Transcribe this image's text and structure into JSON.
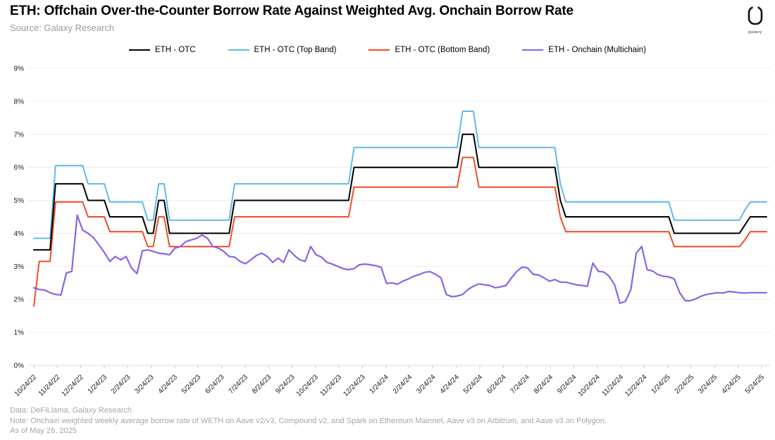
{
  "header": {
    "title": "ETH: Offchain Over-the-Counter Borrow Rate Against Weighted Avg. Onchain Borrow Rate",
    "source": "Source: Galaxy Research",
    "logo_text": "galaxy"
  },
  "legend": [
    {
      "label": "ETH - OTC",
      "color": "#000000"
    },
    {
      "label": "ETH - OTC (Top Band)",
      "color": "#62B9E8"
    },
    {
      "label": "ETH - OTC (Bottom Band)",
      "color": "#F04E23"
    },
    {
      "label": "ETH - Onchain (Multichain)",
      "color": "#8A63E6"
    }
  ],
  "footer": {
    "data": "Data: DeFiLlama, Galaxy Research",
    "note": "Note: Onchain weighted weekly average borrow rate of WETH on Aave v2/v3, Compound v2, and Spark on Ethereum Mainnet, Aave v3 on Arbitrum, and Aave v3 on Polygon.",
    "as_of": "As of May 26, 2025"
  },
  "chart_data": {
    "type": "line",
    "title": "ETH: Offchain Over-the-Counter Borrow Rate Against Weighted Avg. Onchain Borrow Rate",
    "x_unit": "weekly observations, 10/24/22 through 5/26/25",
    "x_tick_labels": [
      "10/24/22",
      "11/24/22",
      "12/24/22",
      "1/24/23",
      "2/24/23",
      "3/24/23",
      "4/24/23",
      "5/24/23",
      "6/24/23",
      "7/24/23",
      "8/24/23",
      "9/24/23",
      "10/24/23",
      "11/24/23",
      "12/24/23",
      "1/24/24",
      "2/24/24",
      "3/24/24",
      "4/24/24",
      "5/24/24",
      "6/24/24",
      "7/24/24",
      "8/24/24",
      "9/24/24",
      "10/24/24",
      "11/24/24",
      "12/24/24",
      "1/24/25",
      "2/24/25",
      "3/24/25",
      "4/24/25",
      "5/24/25"
    ],
    "y_tick_labels": [
      "0%",
      "1%",
      "2%",
      "3%",
      "4%",
      "5%",
      "6%",
      "7%",
      "8%",
      "9%"
    ],
    "ylim": [
      0,
      9
    ],
    "grid": true,
    "legend_position": "top",
    "series": [
      {
        "name": "ETH - OTC",
        "color": "#000000",
        "values": [
          3.5,
          3.5,
          3.5,
          3.5,
          5.5,
          5.5,
          5.5,
          5.5,
          5.5,
          5.5,
          5.0,
          5.0,
          5.0,
          5.0,
          4.5,
          4.5,
          4.5,
          4.5,
          4.5,
          4.5,
          4.5,
          4.0,
          4.0,
          5.0,
          5.0,
          4.0,
          4.0,
          4.0,
          4.0,
          4.0,
          4.0,
          4.0,
          4.0,
          4.0,
          4.0,
          4.0,
          4.0,
          5.0,
          5.0,
          5.0,
          5.0,
          5.0,
          5.0,
          5.0,
          5.0,
          5.0,
          5.0,
          5.0,
          5.0,
          5.0,
          5.0,
          5.0,
          5.0,
          5.0,
          5.0,
          5.0,
          5.0,
          5.0,
          5.0,
          6.0,
          6.0,
          6.0,
          6.0,
          6.0,
          6.0,
          6.0,
          6.0,
          6.0,
          6.0,
          6.0,
          6.0,
          6.0,
          6.0,
          6.0,
          6.0,
          6.0,
          6.0,
          6.0,
          6.0,
          7.0,
          7.0,
          7.0,
          6.0,
          6.0,
          6.0,
          6.0,
          6.0,
          6.0,
          6.0,
          6.0,
          6.0,
          6.0,
          6.0,
          6.0,
          6.0,
          6.0,
          6.0,
          5.0,
          4.5,
          4.5,
          4.5,
          4.5,
          4.5,
          4.5,
          4.5,
          4.5,
          4.5,
          4.5,
          4.5,
          4.5,
          4.5,
          4.5,
          4.5,
          4.5,
          4.5,
          4.5,
          4.5,
          4.5,
          4.0,
          4.0,
          4.0,
          4.0,
          4.0,
          4.0,
          4.0,
          4.0,
          4.0,
          4.0,
          4.0,
          4.0,
          4.0,
          4.25,
          4.5,
          4.5,
          4.5,
          4.5
        ]
      },
      {
        "name": "ETH - OTC (Top Band)",
        "color": "#62B9E8",
        "values": [
          3.85,
          3.85,
          3.85,
          3.85,
          6.05,
          6.05,
          6.05,
          6.05,
          6.05,
          6.05,
          5.5,
          5.5,
          5.5,
          5.5,
          4.95,
          4.95,
          4.95,
          4.95,
          4.95,
          4.95,
          4.95,
          4.4,
          4.4,
          5.5,
          5.5,
          4.4,
          4.4,
          4.4,
          4.4,
          4.4,
          4.4,
          4.4,
          4.4,
          4.4,
          4.4,
          4.4,
          4.4,
          5.5,
          5.5,
          5.5,
          5.5,
          5.5,
          5.5,
          5.5,
          5.5,
          5.5,
          5.5,
          5.5,
          5.5,
          5.5,
          5.5,
          5.5,
          5.5,
          5.5,
          5.5,
          5.5,
          5.5,
          5.5,
          5.5,
          6.6,
          6.6,
          6.6,
          6.6,
          6.6,
          6.6,
          6.6,
          6.6,
          6.6,
          6.6,
          6.6,
          6.6,
          6.6,
          6.6,
          6.6,
          6.6,
          6.6,
          6.6,
          6.6,
          6.6,
          7.7,
          7.7,
          7.7,
          6.6,
          6.6,
          6.6,
          6.6,
          6.6,
          6.6,
          6.6,
          6.6,
          6.6,
          6.6,
          6.6,
          6.6,
          6.6,
          6.6,
          6.6,
          5.5,
          4.95,
          4.95,
          4.95,
          4.95,
          4.95,
          4.95,
          4.95,
          4.95,
          4.95,
          4.95,
          4.95,
          4.95,
          4.95,
          4.95,
          4.95,
          4.95,
          4.95,
          4.95,
          4.95,
          4.95,
          4.4,
          4.4,
          4.4,
          4.4,
          4.4,
          4.4,
          4.4,
          4.4,
          4.4,
          4.4,
          4.4,
          4.4,
          4.4,
          4.7,
          4.95,
          4.95,
          4.95,
          4.95
        ]
      },
      {
        "name": "ETH - OTC (Bottom Band)",
        "color": "#F04E23",
        "values": [
          1.8,
          3.15,
          3.15,
          3.15,
          4.95,
          4.95,
          4.95,
          4.95,
          4.95,
          4.95,
          4.5,
          4.5,
          4.5,
          4.5,
          4.05,
          4.05,
          4.05,
          4.05,
          4.05,
          4.05,
          4.05,
          3.6,
          3.6,
          4.5,
          4.5,
          3.6,
          3.6,
          3.6,
          3.6,
          3.6,
          3.6,
          3.6,
          3.6,
          3.6,
          3.6,
          3.6,
          3.6,
          4.5,
          4.5,
          4.5,
          4.5,
          4.5,
          4.5,
          4.5,
          4.5,
          4.5,
          4.5,
          4.5,
          4.5,
          4.5,
          4.5,
          4.5,
          4.5,
          4.5,
          4.5,
          4.5,
          4.5,
          4.5,
          4.5,
          5.4,
          5.4,
          5.4,
          5.4,
          5.4,
          5.4,
          5.4,
          5.4,
          5.4,
          5.4,
          5.4,
          5.4,
          5.4,
          5.4,
          5.4,
          5.4,
          5.4,
          5.4,
          5.4,
          5.4,
          6.3,
          6.3,
          6.3,
          5.4,
          5.4,
          5.4,
          5.4,
          5.4,
          5.4,
          5.4,
          5.4,
          5.4,
          5.4,
          5.4,
          5.4,
          5.4,
          5.4,
          5.4,
          4.5,
          4.05,
          4.05,
          4.05,
          4.05,
          4.05,
          4.05,
          4.05,
          4.05,
          4.05,
          4.05,
          4.05,
          4.05,
          4.05,
          4.05,
          4.05,
          4.05,
          4.05,
          4.05,
          4.05,
          4.05,
          3.6,
          3.6,
          3.6,
          3.6,
          3.6,
          3.6,
          3.6,
          3.6,
          3.6,
          3.6,
          3.6,
          3.6,
          3.6,
          3.8,
          4.05,
          4.05,
          4.05,
          4.05
        ]
      },
      {
        "name": "ETH - Onchain (Multichain)",
        "color": "#8A63E6",
        "values": [
          2.35,
          2.3,
          2.28,
          2.2,
          2.15,
          2.13,
          2.8,
          2.85,
          4.55,
          4.1,
          4.0,
          3.87,
          3.65,
          3.42,
          3.15,
          3.3,
          3.2,
          3.3,
          2.95,
          2.78,
          3.47,
          3.5,
          3.45,
          3.4,
          3.38,
          3.35,
          3.55,
          3.6,
          3.75,
          3.8,
          3.85,
          3.95,
          3.85,
          3.6,
          3.55,
          3.45,
          3.3,
          3.28,
          3.15,
          3.08,
          3.2,
          3.33,
          3.4,
          3.3,
          3.12,
          3.25,
          3.12,
          3.5,
          3.33,
          3.2,
          3.15,
          3.6,
          3.35,
          3.28,
          3.12,
          3.07,
          3.0,
          2.93,
          2.9,
          2.93,
          3.05,
          3.07,
          3.05,
          3.02,
          2.97,
          2.48,
          2.5,
          2.46,
          2.55,
          2.62,
          2.7,
          2.75,
          2.82,
          2.84,
          2.76,
          2.65,
          2.15,
          2.08,
          2.1,
          2.15,
          2.3,
          2.4,
          2.47,
          2.44,
          2.42,
          2.35,
          2.38,
          2.42,
          2.65,
          2.85,
          2.98,
          2.95,
          2.76,
          2.74,
          2.65,
          2.55,
          2.6,
          2.52,
          2.52,
          2.48,
          2.44,
          2.42,
          2.4,
          3.1,
          2.85,
          2.83,
          2.7,
          2.44,
          1.88,
          1.94,
          2.3,
          3.4,
          3.6,
          2.9,
          2.86,
          2.75,
          2.7,
          2.68,
          2.62,
          2.2,
          1.96,
          1.96,
          2.02,
          2.1,
          2.15,
          2.18,
          2.2,
          2.19,
          2.24,
          2.22,
          2.2,
          2.19,
          2.2,
          2.2,
          2.2,
          2.2
        ]
      }
    ]
  }
}
